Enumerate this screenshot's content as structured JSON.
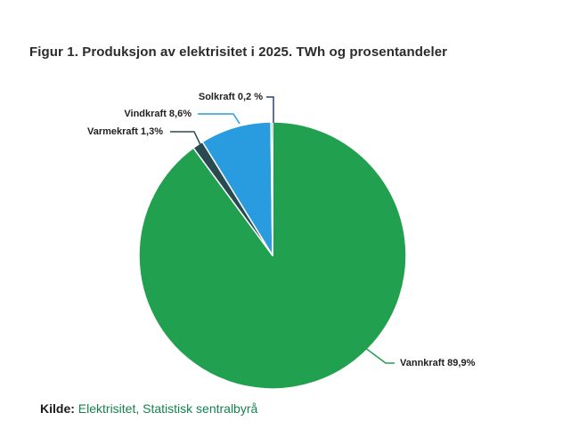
{
  "header": {
    "title": "Figur 1. Produksjon av elektrisitet i 2025. TWh og prosentandeler"
  },
  "source": {
    "prefix": "Kilde:",
    "link": "Elektrisitet, Statistisk sentralbyrå",
    "link_color": "#17814E"
  },
  "chart_data": {
    "type": "pie",
    "title": "Figur 1. Produksjon av elektrisitet i 2025. TWh og prosentandeler",
    "value_unit": "%",
    "start_angle": "12-oclock",
    "direction": "clockwise",
    "legend_position": "outside-callout-labels",
    "slices": [
      {
        "name": "Vannkraft",
        "value": 89.9,
        "label": "Vannkraft 89,9%",
        "color": "#21A04F"
      },
      {
        "name": "Varmekraft",
        "value": 1.3,
        "label": "Varmekraft 1,3%",
        "color": "#2A4A52"
      },
      {
        "name": "Vindkraft",
        "value": 8.6,
        "label": "Vindkraft 8,6%",
        "color": "#289CDF"
      },
      {
        "name": "Solkraft",
        "value": 0.2,
        "label": "Solkraft 0,2 %",
        "color": "#2F4077"
      }
    ]
  }
}
